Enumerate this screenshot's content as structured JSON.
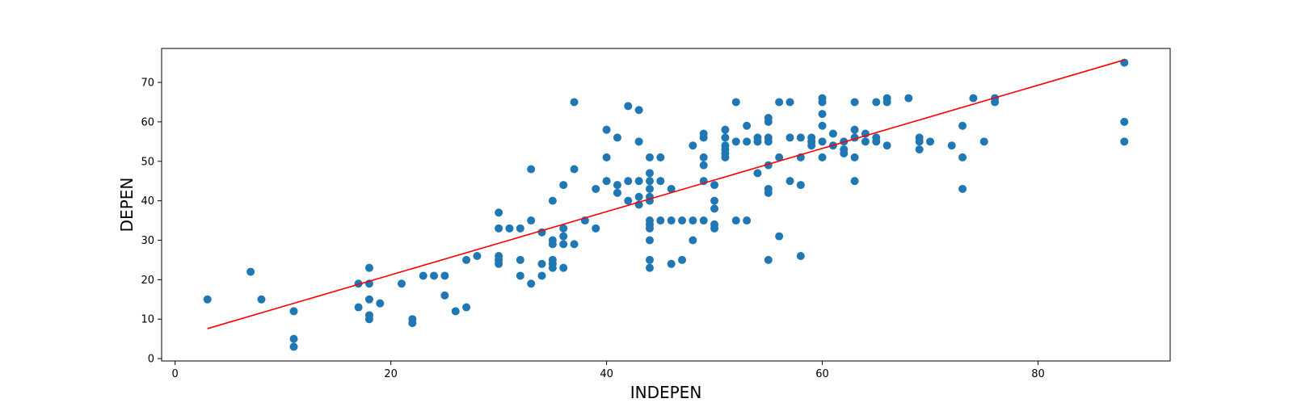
{
  "chart_data": {
    "type": "scatter",
    "title": "",
    "xlabel": "INDEPEN",
    "ylabel": "DEPEN",
    "xlim": [
      -1.25,
      92.25
    ],
    "ylim": [
      -0.6,
      78.6
    ],
    "xticks": [
      0,
      20,
      40,
      60,
      80
    ],
    "yticks": [
      0,
      10,
      20,
      30,
      40,
      50,
      60,
      70
    ],
    "grid": false,
    "legend": "none",
    "colors": {
      "points": "#1f77b4",
      "fit_line": "#ff0000",
      "axes": "#000000",
      "background": "#ffffff"
    },
    "fit_line": {
      "x": [
        3,
        88
      ],
      "y": [
        7.6,
        75.7
      ]
    },
    "points": [
      [
        3,
        15
      ],
      [
        7,
        22
      ],
      [
        8,
        15
      ],
      [
        11,
        12
      ],
      [
        11,
        5
      ],
      [
        11,
        3
      ],
      [
        17,
        19
      ],
      [
        17,
        13
      ],
      [
        18,
        23
      ],
      [
        18,
        19
      ],
      [
        18,
        15
      ],
      [
        18,
        11
      ],
      [
        18,
        10
      ],
      [
        19,
        14
      ],
      [
        21,
        19
      ],
      [
        22,
        10
      ],
      [
        22,
        9
      ],
      [
        23,
        21
      ],
      [
        24,
        21
      ],
      [
        25,
        21
      ],
      [
        25,
        16
      ],
      [
        26,
        12
      ],
      [
        27,
        25
      ],
      [
        27,
        13
      ],
      [
        28,
        26
      ],
      [
        30,
        37
      ],
      [
        30,
        33
      ],
      [
        30,
        26
      ],
      [
        30,
        25
      ],
      [
        30,
        24
      ],
      [
        31,
        33
      ],
      [
        32,
        33
      ],
      [
        32,
        25
      ],
      [
        32,
        21
      ],
      [
        33,
        48
      ],
      [
        33,
        35
      ],
      [
        33,
        19
      ],
      [
        34,
        32
      ],
      [
        34,
        24
      ],
      [
        34,
        21
      ],
      [
        35,
        40
      ],
      [
        35,
        30
      ],
      [
        35,
        29
      ],
      [
        35,
        25
      ],
      [
        35,
        24
      ],
      [
        35,
        23
      ],
      [
        36,
        44
      ],
      [
        36,
        33
      ],
      [
        36,
        31
      ],
      [
        36,
        29
      ],
      [
        36,
        23
      ],
      [
        37,
        65
      ],
      [
        37,
        48
      ],
      [
        37,
        29
      ],
      [
        38,
        35
      ],
      [
        39,
        43
      ],
      [
        39,
        33
      ],
      [
        40,
        58
      ],
      [
        40,
        51
      ],
      [
        40,
        45
      ],
      [
        41,
        56
      ],
      [
        41,
        44
      ],
      [
        41,
        42
      ],
      [
        42,
        64
      ],
      [
        42,
        45
      ],
      [
        42,
        40
      ],
      [
        43,
        63
      ],
      [
        43,
        55
      ],
      [
        43,
        45
      ],
      [
        43,
        41
      ],
      [
        43,
        39
      ],
      [
        44,
        51
      ],
      [
        44,
        47
      ],
      [
        44,
        45
      ],
      [
        44,
        43
      ],
      [
        44,
        41
      ],
      [
        44,
        40
      ],
      [
        44,
        35
      ],
      [
        44,
        34
      ],
      [
        44,
        33
      ],
      [
        44,
        30
      ],
      [
        44,
        25
      ],
      [
        44,
        23
      ],
      [
        45,
        51
      ],
      [
        45,
        45
      ],
      [
        45,
        35
      ],
      [
        46,
        43
      ],
      [
        46,
        35
      ],
      [
        46,
        24
      ],
      [
        47,
        35
      ],
      [
        47,
        25
      ],
      [
        48,
        54
      ],
      [
        48,
        35
      ],
      [
        48,
        30
      ],
      [
        49,
        57
      ],
      [
        49,
        56
      ],
      [
        49,
        51
      ],
      [
        49,
        49
      ],
      [
        49,
        45
      ],
      [
        49,
        35
      ],
      [
        50,
        44
      ],
      [
        50,
        40
      ],
      [
        50,
        38
      ],
      [
        50,
        34
      ],
      [
        50,
        33
      ],
      [
        51,
        58
      ],
      [
        51,
        56
      ],
      [
        51,
        54
      ],
      [
        51,
        53
      ],
      [
        51,
        52
      ],
      [
        51,
        51
      ],
      [
        52,
        65
      ],
      [
        52,
        55
      ],
      [
        52,
        35
      ],
      [
        53,
        59
      ],
      [
        53,
        55
      ],
      [
        53,
        35
      ],
      [
        54,
        56
      ],
      [
        54,
        55
      ],
      [
        54,
        47
      ],
      [
        55,
        61
      ],
      [
        55,
        60
      ],
      [
        55,
        56
      ],
      [
        55,
        55
      ],
      [
        55,
        49
      ],
      [
        55,
        43
      ],
      [
        55,
        42
      ],
      [
        55,
        25
      ],
      [
        56,
        65
      ],
      [
        56,
        51
      ],
      [
        56,
        31
      ],
      [
        57,
        65
      ],
      [
        57,
        56
      ],
      [
        57,
        45
      ],
      [
        58,
        56
      ],
      [
        58,
        51
      ],
      [
        58,
        44
      ],
      [
        58,
        26
      ],
      [
        59,
        56
      ],
      [
        59,
        55
      ],
      [
        59,
        54
      ],
      [
        60,
        66
      ],
      [
        60,
        65
      ],
      [
        60,
        62
      ],
      [
        60,
        59
      ],
      [
        60,
        55
      ],
      [
        60,
        51
      ],
      [
        61,
        57
      ],
      [
        61,
        54
      ],
      [
        62,
        55
      ],
      [
        62,
        53
      ],
      [
        62,
        52
      ],
      [
        63,
        65
      ],
      [
        63,
        58
      ],
      [
        63,
        56
      ],
      [
        63,
        51
      ],
      [
        63,
        45
      ],
      [
        64,
        57
      ],
      [
        64,
        55
      ],
      [
        65,
        65
      ],
      [
        65,
        56
      ],
      [
        65,
        55
      ],
      [
        66,
        66
      ],
      [
        66,
        65
      ],
      [
        66,
        54
      ],
      [
        68,
        66
      ],
      [
        69,
        56
      ],
      [
        69,
        55
      ],
      [
        69,
        53
      ],
      [
        70,
        55
      ],
      [
        72,
        54
      ],
      [
        73,
        59
      ],
      [
        73,
        51
      ],
      [
        73,
        43
      ],
      [
        74,
        66
      ],
      [
        75,
        55
      ],
      [
        76,
        66
      ],
      [
        76,
        65
      ],
      [
        88,
        75
      ],
      [
        88,
        60
      ],
      [
        88,
        55
      ]
    ]
  }
}
